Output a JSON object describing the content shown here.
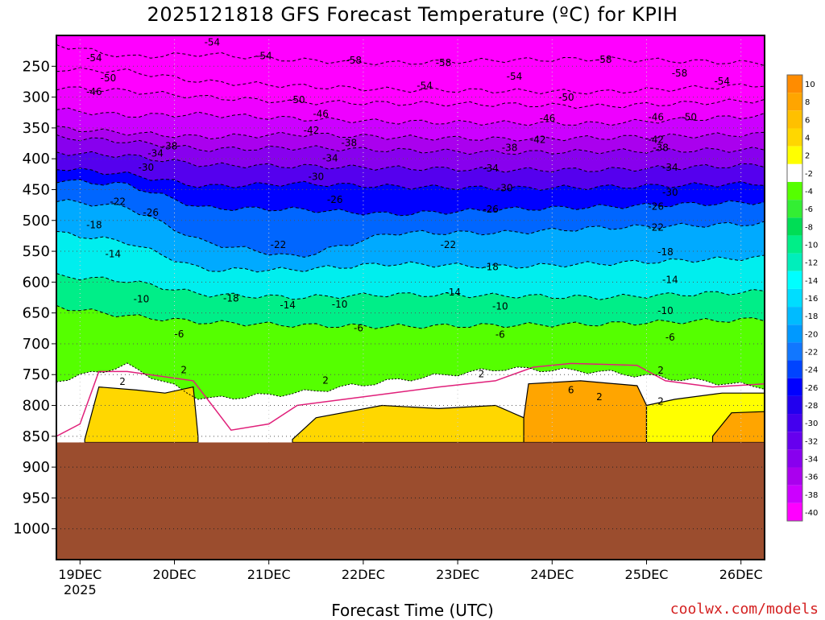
{
  "chart_data": {
    "type": "heatmap",
    "title": "2025121818 GFS Forecast Temperature (ºC) for KPIH",
    "xlabel": "Forecast Time (UTC)",
    "credit": "coolwx.com/models",
    "x_ticks": [
      "19DEC",
      "20DEC",
      "21DEC",
      "22DEC",
      "23DEC",
      "24DEC",
      "25DEC",
      "26DEC"
    ],
    "x_year": "2025",
    "x_range_days": [
      18.75,
      26.25
    ],
    "y_axis": "pressure (hPa), reversed, linear",
    "y_range": [
      200,
      1050
    ],
    "y_ticks": [
      250,
      300,
      350,
      400,
      450,
      500,
      550,
      600,
      650,
      700,
      750,
      800,
      850,
      900,
      950,
      1000
    ],
    "surface_pressure_hPa": 860,
    "colorbar": {
      "labels": [
        10,
        8,
        6,
        4,
        2,
        -2,
        -4,
        -6,
        -8,
        -10,
        -12,
        -14,
        -16,
        -18,
        -20,
        -22,
        -24,
        -26,
        -28,
        -30,
        -32,
        -34,
        -36,
        -38,
        -40
      ],
      "colors": [
        "#ff8c00",
        "#ffa500",
        "#ffc000",
        "#ffd700",
        "#ffff00",
        "#ffffff",
        "#55ff00",
        "#33ee33",
        "#00dd55",
        "#00ee88",
        "#00eebb",
        "#00ffff",
        "#00ddff",
        "#00bbff",
        "#0099ff",
        "#1177ff",
        "#0044ff",
        "#0000ff",
        "#2200ee",
        "#4400ee",
        "#6600ee",
        "#8800ee",
        "#aa00ee",
        "#cc00ff",
        "#ff00ff"
      ]
    },
    "isotherms": [
      {
        "label": "-54",
        "p": [
          215,
          235,
          230,
          240,
          245,
          240,
          238,
          245
        ],
        "days": [
          18.75,
          19.5,
          20.3,
          21.3,
          22.3,
          23.5,
          24.5,
          26.25
        ]
      },
      {
        "label": "-50",
        "p": [
          255,
          258,
          275,
          282,
          288,
          290,
          292,
          280
        ],
        "days": [
          18.75,
          19.5,
          20.3,
          21.3,
          22.3,
          23.5,
          24.5,
          26.25
        ]
      },
      {
        "label": "-46",
        "p": [
          285,
          290,
          300,
          308,
          310,
          312,
          315,
          305
        ],
        "days": [
          18.75,
          19.5,
          20.3,
          21.3,
          22.3,
          23.5,
          24.5,
          26.25
        ]
      },
      {
        "label": "-42",
        "p": [
          320,
          330,
          328,
          335,
          340,
          342,
          343,
          330
        ],
        "days": [
          18.75,
          19.5,
          20.3,
          21.3,
          22.3,
          23.5,
          24.5,
          26.25
        ]
      },
      {
        "label": "-38",
        "p": [
          350,
          358,
          365,
          360,
          365,
          368,
          366,
          360
        ],
        "days": [
          18.75,
          19.5,
          20.3,
          21.3,
          22.3,
          23.5,
          24.5,
          26.25
        ]
      },
      {
        "label": "-34",
        "p": [
          365,
          372,
          385,
          382,
          386,
          390,
          388,
          385
        ],
        "days": [
          18.75,
          19.5,
          20.3,
          21.3,
          22.3,
          23.5,
          24.5,
          26.25
        ]
      },
      {
        "label": "-30",
        "p": [
          390,
          395,
          410,
          412,
          415,
          418,
          418,
          410
        ],
        "days": [
          18.75,
          19.5,
          20.3,
          21.3,
          22.3,
          23.5,
          24.5,
          26.25
        ]
      },
      {
        "label": "-26",
        "p": [
          415,
          425,
          445,
          440,
          445,
          448,
          446,
          440
        ],
        "days": [
          18.75,
          19.5,
          20.3,
          21.3,
          22.3,
          23.5,
          24.5,
          26.25
        ]
      },
      {
        "label": "-22",
        "p": [
          435,
          442,
          480,
          482,
          490,
          482,
          478,
          470
        ],
        "days": [
          18.75,
          19.5,
          20.3,
          21.3,
          22.3,
          23.5,
          24.5,
          26.25
        ]
      },
      {
        "label": "-18",
        "p": [
          468,
          478,
          535,
          560,
          520,
          520,
          512,
          505
        ],
        "days": [
          18.75,
          19.5,
          20.3,
          21.3,
          22.3,
          23.5,
          24.5,
          26.25
        ]
      },
      {
        "label": "-14",
        "p": [
          520,
          535,
          580,
          580,
          570,
          575,
          570,
          560
        ],
        "days": [
          18.75,
          19.5,
          20.3,
          21.3,
          22.3,
          23.5,
          24.5,
          26.25
        ]
      },
      {
        "label": "-10",
        "p": [
          590,
          598,
          620,
          625,
          620,
          622,
          625,
          615
        ],
        "days": [
          18.75,
          19.5,
          20.3,
          21.3,
          22.3,
          23.5,
          24.5,
          26.25
        ]
      },
      {
        "label": "-6",
        "p": [
          640,
          655,
          665,
          670,
          672,
          670,
          668,
          660
        ],
        "days": [
          18.75,
          19.5,
          20.3,
          21.3,
          22.3,
          23.5,
          24.5,
          26.25
        ]
      },
      {
        "label": "2",
        "p": [
          760,
          735,
          790,
          780,
          760,
          740,
          745,
          770
        ],
        "days": [
          18.75,
          19.5,
          20.3,
          21.3,
          22.3,
          23.5,
          24.5,
          26.25
        ]
      }
    ],
    "label_positions": [
      {
        "text": "-54",
        "day": 20.4,
        "p": 212
      },
      {
        "text": "-54",
        "day": 19.15,
        "p": 237
      },
      {
        "text": "-54",
        "day": 20.95,
        "p": 234
      },
      {
        "text": "-58",
        "day": 21.9,
        "p": 241
      },
      {
        "text": "-58",
        "day": 22.85,
        "p": 245
      },
      {
        "text": "-58",
        "day": 24.55,
        "p": 240
      },
      {
        "text": "-58",
        "day": 25.35,
        "p": 262
      },
      {
        "text": "-54",
        "day": 25.8,
        "p": 275
      },
      {
        "text": "-54",
        "day": 23.6,
        "p": 267
      },
      {
        "text": "-54",
        "day": 22.65,
        "p": 282
      },
      {
        "text": "-50",
        "day": 19.3,
        "p": 270
      },
      {
        "text": "-46",
        "day": 19.15,
        "p": 292
      },
      {
        "text": "-50",
        "day": 21.3,
        "p": 305
      },
      {
        "text": "-50",
        "day": 24.15,
        "p": 301
      },
      {
        "text": "-46",
        "day": 21.55,
        "p": 328
      },
      {
        "text": "-46",
        "day": 23.95,
        "p": 335
      },
      {
        "text": "-46",
        "day": 25.1,
        "p": 333
      },
      {
        "text": "-50",
        "day": 25.45,
        "p": 333
      },
      {
        "text": "-42",
        "day": 21.45,
        "p": 355
      },
      {
        "text": "-42",
        "day": 23.85,
        "p": 370
      },
      {
        "text": "-42",
        "day": 25.1,
        "p": 370
      },
      {
        "text": "-38",
        "day": 19.95,
        "p": 380
      },
      {
        "text": "-38",
        "day": 21.85,
        "p": 375
      },
      {
        "text": "-38",
        "day": 23.55,
        "p": 383
      },
      {
        "text": "-38",
        "day": 25.15,
        "p": 383
      },
      {
        "text": "-34",
        "day": 19.8,
        "p": 392
      },
      {
        "text": "-34",
        "day": 21.65,
        "p": 400
      },
      {
        "text": "-34",
        "day": 23.35,
        "p": 416
      },
      {
        "text": "-34",
        "day": 25.25,
        "p": 415
      },
      {
        "text": "-30",
        "day": 19.7,
        "p": 415
      },
      {
        "text": "-30",
        "day": 21.5,
        "p": 430
      },
      {
        "text": "-30",
        "day": 23.5,
        "p": 448
      },
      {
        "text": "-30",
        "day": 25.25,
        "p": 455
      },
      {
        "text": "-22",
        "day": 19.4,
        "p": 470
      },
      {
        "text": "-26",
        "day": 19.75,
        "p": 488
      },
      {
        "text": "-26",
        "day": 21.7,
        "p": 467
      },
      {
        "text": "-26",
        "day": 23.35,
        "p": 483
      },
      {
        "text": "-26",
        "day": 25.1,
        "p": 478
      },
      {
        "text": "-22",
        "day": 21.1,
        "p": 540
      },
      {
        "text": "-22",
        "day": 22.9,
        "p": 540
      },
      {
        "text": "-22",
        "day": 25.1,
        "p": 512
      },
      {
        "text": "-18",
        "day": 19.15,
        "p": 508
      },
      {
        "text": "-18",
        "day": 23.35,
        "p": 576
      },
      {
        "text": "-18",
        "day": 25.2,
        "p": 552
      },
      {
        "text": "-14",
        "day": 19.35,
        "p": 555
      },
      {
        "text": "-14",
        "day": 21.2,
        "p": 638
      },
      {
        "text": "-14",
        "day": 22.95,
        "p": 617
      },
      {
        "text": "-14",
        "day": 25.25,
        "p": 597
      },
      {
        "text": "-18",
        "day": 20.6,
        "p": 627
      },
      {
        "text": "-10",
        "day": 19.65,
        "p": 628
      },
      {
        "text": "-10",
        "day": 21.75,
        "p": 637
      },
      {
        "text": "-10",
        "day": 23.45,
        "p": 640
      },
      {
        "text": "-10",
        "day": 25.2,
        "p": 647
      },
      {
        "text": "-6",
        "day": 20.05,
        "p": 685
      },
      {
        "text": "-6",
        "day": 21.95,
        "p": 675
      },
      {
        "text": "-6",
        "day": 23.45,
        "p": 686
      },
      {
        "text": "-6",
        "day": 25.25,
        "p": 690
      },
      {
        "text": "2",
        "day": 20.1,
        "p": 743
      },
      {
        "text": "2",
        "day": 19.45,
        "p": 762
      },
      {
        "text": "2",
        "day": 21.6,
        "p": 760
      },
      {
        "text": "2",
        "day": 23.25,
        "p": 750
      },
      {
        "text": "2",
        "day": 24.5,
        "p": 787
      },
      {
        "text": "6",
        "day": 24.2,
        "p": 776
      },
      {
        "text": "2",
        "day": 25.15,
        "p": 744
      },
      {
        "text": "2",
        "day": 25.15,
        "p": 794
      }
    ]
  }
}
